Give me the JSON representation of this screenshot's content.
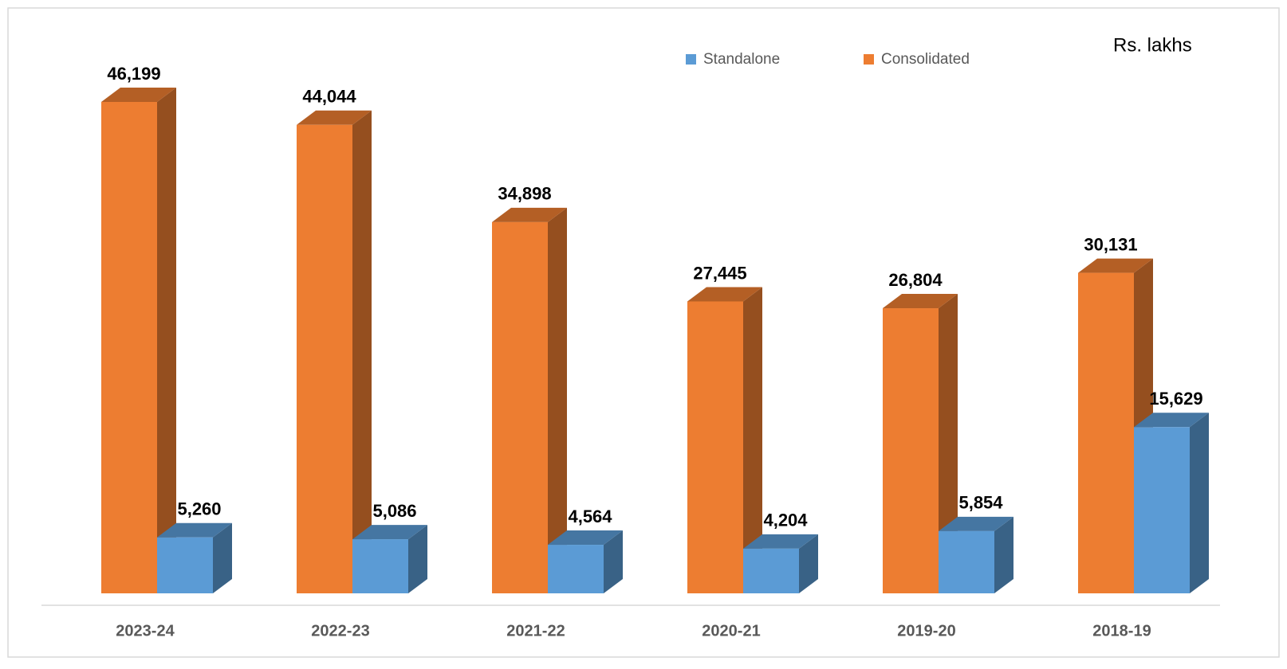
{
  "chart_data": {
    "type": "bar3d",
    "annotation": "Rs. lakhs",
    "categories": [
      "2023-24",
      "2022-23",
      "2021-22",
      "2020-21",
      "2019-20",
      "2018-19"
    ],
    "series": [
      {
        "name": "Standalone",
        "color": "#5b9bd5",
        "values": [
          5260,
          5086,
          4564,
          4204,
          5854,
          15629
        ],
        "value_labels": [
          "5,260",
          "5,086",
          "4,564",
          "4,204",
          "5,854",
          "15,629"
        ]
      },
      {
        "name": "Consolidated",
        "color": "#ed7d31",
        "values": [
          46199,
          44044,
          34898,
          27445,
          26804,
          30131
        ],
        "value_labels": [
          "46,199",
          "44,044",
          "34,898",
          "27,445",
          "26,804",
          "30,131"
        ]
      }
    ],
    "legend": "top"
  }
}
